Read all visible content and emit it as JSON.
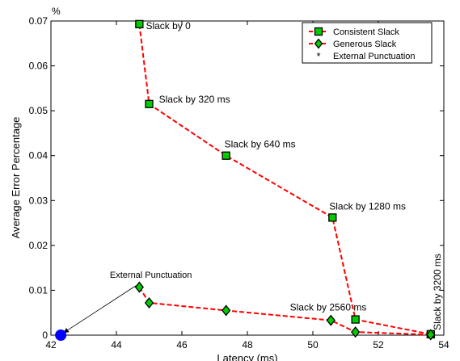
{
  "chart_data": {
    "type": "line",
    "xlabel": "Latency (ms)",
    "ylabel": "Average Error Percentage",
    "y_unit_label": "%",
    "xlim": [
      42,
      54
    ],
    "ylim": [
      0,
      0.07
    ],
    "x_ticks": [
      42,
      44,
      46,
      48,
      50,
      52,
      54
    ],
    "y_ticks": [
      0,
      0.01,
      0.02,
      0.03,
      0.04,
      0.05,
      0.06,
      0.07
    ],
    "x_tick_labels": [
      "42",
      "44",
      "46",
      "48",
      "50",
      "52",
      "54"
    ],
    "y_tick_labels": [
      "0",
      "0.01",
      "0.02",
      "0.03",
      "0.04",
      "0.05",
      "0.06",
      "0.07"
    ],
    "grid": false,
    "legend_position": "top-right",
    "line_color": "#ff0000",
    "series": [
      {
        "name": "Consistent Slack",
        "marker": "square",
        "color": "#00cc00",
        "x": [
          44.7,
          45.0,
          47.35,
          50.6,
          51.3,
          53.6
        ],
        "y": [
          0.0693,
          0.0515,
          0.04,
          0.0262,
          0.0035,
          0.0002
        ]
      },
      {
        "name": "Generous Slack",
        "marker": "diamond",
        "color": "#00cc00",
        "x": [
          44.7,
          45.0,
          47.35,
          50.55,
          51.3,
          53.6
        ],
        "y": [
          0.0107,
          0.0072,
          0.0055,
          0.0033,
          0.0007,
          0.0001
        ]
      },
      {
        "name": "External Punctuation",
        "marker": "circle",
        "color": "#0000ff",
        "x": [
          42.3
        ],
        "y": [
          0.0
        ]
      }
    ],
    "annotations": [
      {
        "text": "Slack by 0",
        "x": 44.9,
        "y": 0.0682
      },
      {
        "text": "Slack by 320 ms",
        "x": 45.3,
        "y": 0.0518
      },
      {
        "text": "Slack by 640 ms",
        "x": 47.3,
        "y": 0.0418
      },
      {
        "text": "Slack by 1280 ms",
        "x": 50.5,
        "y": 0.028
      },
      {
        "text": "Slack by 2560 ms",
        "x": 49.3,
        "y": 0.0055
      },
      {
        "text": "Slack by 3200 ms",
        "x": 53.9,
        "y": 0.0011,
        "rotated": true
      },
      {
        "text": "External Punctuation",
        "x": 43.8,
        "y": 0.0128,
        "arrow_to": [
          42.4,
          0.0006
        ]
      }
    ]
  }
}
